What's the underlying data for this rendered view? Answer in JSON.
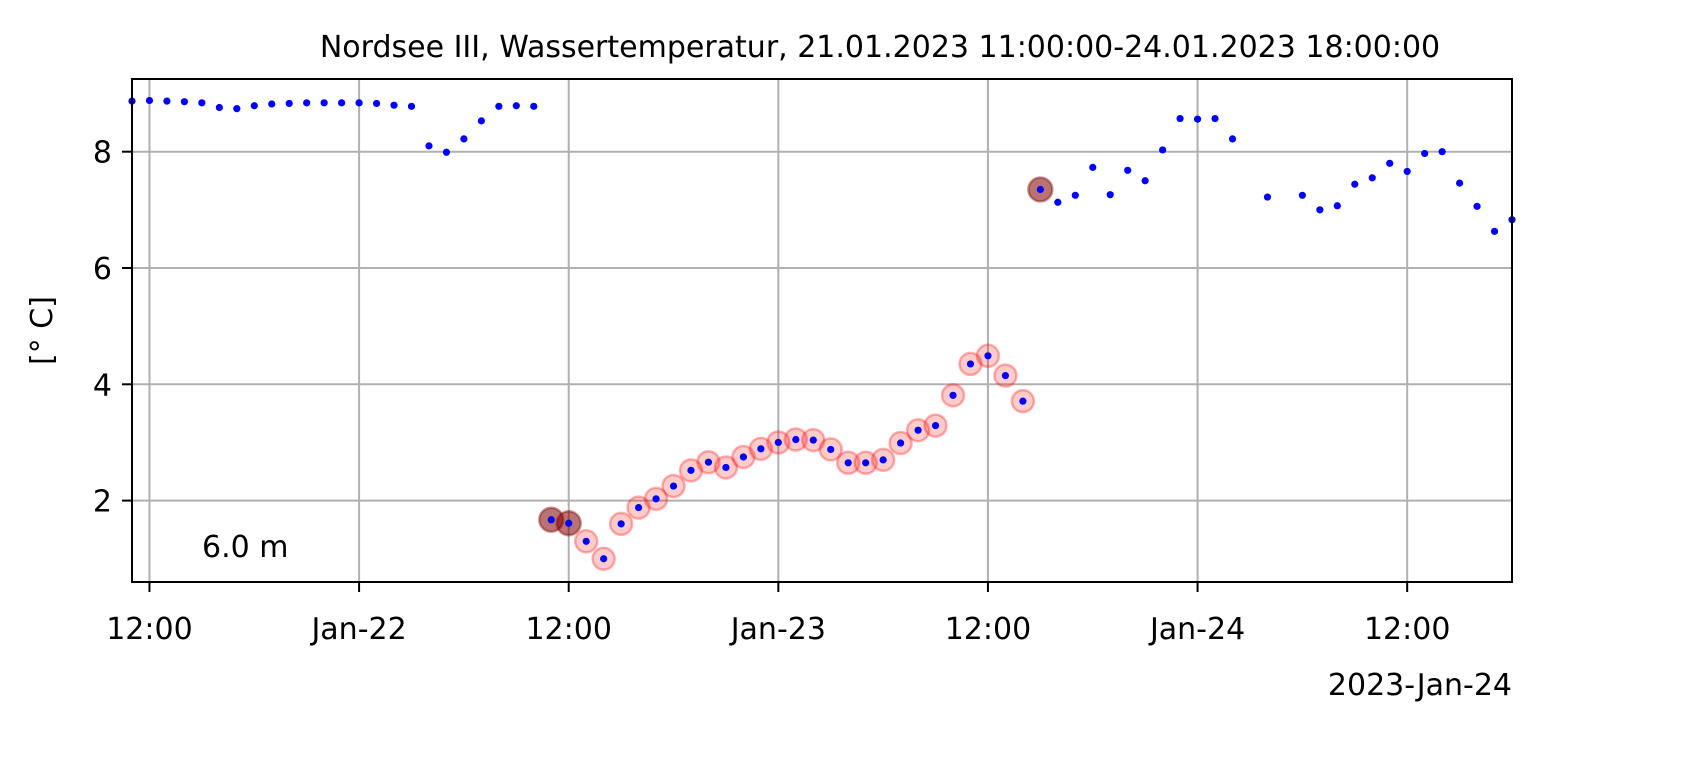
{
  "chart_data": {
    "type": "scatter",
    "title": "Nordsee III, Wassertemperatur, 21.01.2023 11:00:00-24.01.2023 18:00:00",
    "xlabel": "",
    "ylabel": "[° C]",
    "x_offset_label": "2023-Jan-24",
    "annotation": "6.0 m",
    "xlim": [
      "2023-01-21 11:00",
      "2023-01-24 18:00"
    ],
    "ylim": [
      0.6,
      9.25
    ],
    "grid": true,
    "x_ticks": [
      {
        "t": "2023-01-21 12:00",
        "label": "12:00"
      },
      {
        "t": "2023-01-22 00:00",
        "label": "Jan-22"
      },
      {
        "t": "2023-01-22 12:00",
        "label": "12:00"
      },
      {
        "t": "2023-01-23 00:00",
        "label": "Jan-23"
      },
      {
        "t": "2023-01-23 12:00",
        "label": "12:00"
      },
      {
        "t": "2023-01-24 00:00",
        "label": "Jan-24"
      },
      {
        "t": "2023-01-24 12:00",
        "label": "12:00"
      }
    ],
    "y_ticks": [
      {
        "v": 2,
        "label": "2"
      },
      {
        "v": 4,
        "label": "4"
      },
      {
        "v": 6,
        "label": "6"
      },
      {
        "v": 8,
        "label": "8"
      }
    ],
    "colors": {
      "points": "#0000ff",
      "flag_suspect": "#ff0000",
      "flag_bad": "#800000",
      "grid": "#b0b0b0",
      "axes": "#000000"
    },
    "series": [
      {
        "x": [
          "2023-01-21 11:00",
          "2023-01-21 12:00",
          "2023-01-21 13:00",
          "2023-01-21 14:00",
          "2023-01-21 15:00",
          "2023-01-21 16:00",
          "2023-01-21 17:00",
          "2023-01-21 18:00",
          "2023-01-21 19:00",
          "2023-01-21 20:00",
          "2023-01-21 21:00",
          "2023-01-21 22:00",
          "2023-01-21 23:00",
          "2023-01-22 00:00",
          "2023-01-22 01:00",
          "2023-01-22 02:00",
          "2023-01-22 03:00",
          "2023-01-22 04:00",
          "2023-01-22 05:00",
          "2023-01-22 06:00",
          "2023-01-22 07:00",
          "2023-01-22 08:00",
          "2023-01-22 09:00",
          "2023-01-22 10:00",
          "2023-01-22 11:00",
          "2023-01-22 12:00",
          "2023-01-22 13:00",
          "2023-01-22 14:00",
          "2023-01-22 15:00",
          "2023-01-22 16:00",
          "2023-01-22 17:00",
          "2023-01-22 18:00",
          "2023-01-22 19:00",
          "2023-01-22 20:00",
          "2023-01-22 21:00",
          "2023-01-22 22:00",
          "2023-01-22 23:00",
          "2023-01-23 00:00",
          "2023-01-23 01:00",
          "2023-01-23 02:00",
          "2023-01-23 03:00",
          "2023-01-23 04:00",
          "2023-01-23 05:00",
          "2023-01-23 06:00",
          "2023-01-23 07:00",
          "2023-01-23 08:00",
          "2023-01-23 09:00",
          "2023-01-23 10:00",
          "2023-01-23 11:00",
          "2023-01-23 12:00",
          "2023-01-23 13:00",
          "2023-01-23 14:00",
          "2023-01-23 15:00",
          "2023-01-23 16:00",
          "2023-01-23 17:00",
          "2023-01-23 18:00",
          "2023-01-23 19:00",
          "2023-01-23 20:00",
          "2023-01-23 21:00",
          "2023-01-23 22:00",
          "2023-01-23 23:00",
          "2023-01-24 00:00",
          "2023-01-24 01:00",
          "2023-01-24 02:00",
          "2023-01-24 04:00",
          "2023-01-24 06:00",
          "2023-01-24 07:00",
          "2023-01-24 08:00",
          "2023-01-24 09:00",
          "2023-01-24 10:00",
          "2023-01-24 11:00",
          "2023-01-24 12:00",
          "2023-01-24 13:00",
          "2023-01-24 14:00",
          "2023-01-24 15:00",
          "2023-01-24 16:00",
          "2023-01-24 17:00",
          "2023-01-24 18:00"
        ],
        "y": [
          8.87,
          8.88,
          8.87,
          8.86,
          8.84,
          8.76,
          8.74,
          8.79,
          8.82,
          8.83,
          8.84,
          8.84,
          8.84,
          8.84,
          8.83,
          8.8,
          8.78,
          8.1,
          7.99,
          8.22,
          8.53,
          8.78,
          8.79,
          8.78,
          1.67,
          1.61,
          1.3,
          1.0,
          1.6,
          1.88,
          2.03,
          2.25,
          2.52,
          2.66,
          2.57,
          2.75,
          2.89,
          3.0,
          3.05,
          3.04,
          2.88,
          2.65,
          2.65,
          2.7,
          2.99,
          3.21,
          3.29,
          3.81,
          4.35,
          4.49,
          4.15,
          3.71,
          7.35,
          7.13,
          7.25,
          7.73,
          7.26,
          7.68,
          7.5,
          8.03,
          8.57,
          8.56,
          8.57,
          8.22,
          7.22,
          7.25,
          7.0,
          7.07,
          7.44,
          7.55,
          7.8,
          7.66,
          7.97,
          8.0,
          7.46,
          7.06,
          6.63,
          6.83
        ],
        "flag": [
          0,
          0,
          0,
          0,
          0,
          0,
          0,
          0,
          0,
          0,
          0,
          0,
          0,
          0,
          0,
          0,
          0,
          0,
          0,
          0,
          0,
          0,
          0,
          0,
          2,
          2,
          1,
          1,
          1,
          1,
          1,
          1,
          1,
          1,
          1,
          1,
          1,
          1,
          1,
          1,
          1,
          1,
          1,
          1,
          1,
          1,
          1,
          1,
          1,
          1,
          1,
          1,
          2,
          0,
          0,
          0,
          0,
          0,
          0,
          0,
          0,
          0,
          0,
          0,
          0,
          0,
          0,
          0,
          0,
          0,
          0,
          0,
          0,
          0,
          0,
          0,
          0,
          0
        ]
      }
    ]
  }
}
